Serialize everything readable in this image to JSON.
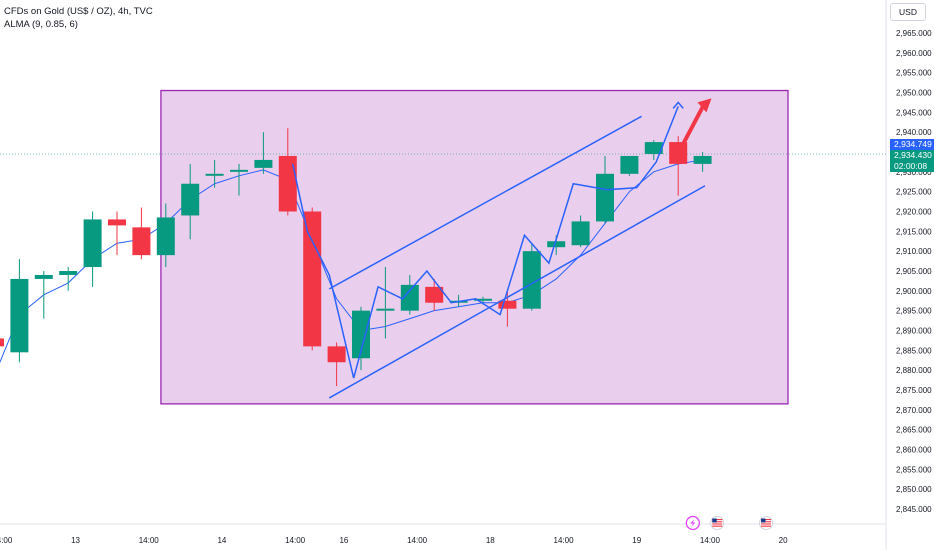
{
  "header": {
    "symbol_line": "CFDs on Gold (US$ / OZ), 4h, TVC",
    "indicator_line": "ALMA (9, 0.85, 6)",
    "currency": "USD"
  },
  "price_tags": {
    "last_price": "2,934.749",
    "mark_price": "2,934.430",
    "countdown": "02:00:08"
  },
  "chart_data": {
    "type": "candlestick",
    "y_axis": {
      "ylim": [
        2842,
        2969
      ],
      "ticks": [
        "2,965.000",
        "2,960.000",
        "2,955.000",
        "2,950.000",
        "2,945.000",
        "2,940.000",
        "2,935.000",
        "2,930.000",
        "2,925.000",
        "2,920.000",
        "2,915.000",
        "2,910.000",
        "2,905.000",
        "2,900.000",
        "2,895.000",
        "2,890.000",
        "2,885.000",
        "2,880.000",
        "2,875.000",
        "2,870.000",
        "2,865.000",
        "2,860.000",
        "2,855.000",
        "2,850.000",
        "2,845.000"
      ],
      "tick_values": [
        2965,
        2960,
        2955,
        2950,
        2945,
        2940,
        2935,
        2930,
        2925,
        2920,
        2915,
        2910,
        2905,
        2900,
        2895,
        2890,
        2885,
        2880,
        2875,
        2870,
        2865,
        2860,
        2855,
        2850,
        2845
      ]
    },
    "x_axis": {
      "labels": [
        {
          "text": "14:00",
          "bar": 0.3
        },
        {
          "text": "13",
          "bar": 3.3
        },
        {
          "text": "14:00",
          "bar": 6.3
        },
        {
          "text": "14",
          "bar": 9.3
        },
        {
          "text": "14:00",
          "bar": 12.3
        },
        {
          "text": "16",
          "bar": 14.3
        },
        {
          "text": "14:00",
          "bar": 17.3
        },
        {
          "text": "18",
          "bar": 20.3
        },
        {
          "text": "14:00",
          "bar": 23.3
        },
        {
          "text": "19",
          "bar": 26.3
        },
        {
          "text": "14:00",
          "bar": 29.3
        },
        {
          "text": "20",
          "bar": 32.3
        }
      ]
    },
    "candles": [
      {
        "o": 2888.0,
        "h": 2889.0,
        "l": 2884.0,
        "c": 2886.0
      },
      {
        "o": 2884.5,
        "h": 2908.0,
        "l": 2882.0,
        "c": 2903.0
      },
      {
        "o": 2903.0,
        "h": 2905.0,
        "l": 2893.0,
        "c": 2904.0
      },
      {
        "o": 2904.0,
        "h": 2906.0,
        "l": 2900.0,
        "c": 2905.0
      },
      {
        "o": 2906.0,
        "h": 2920.0,
        "l": 2901.0,
        "c": 2918.0
      },
      {
        "o": 2918.0,
        "h": 2920.0,
        "l": 2909.0,
        "c": 2916.5
      },
      {
        "o": 2916.0,
        "h": 2921.0,
        "l": 2908.0,
        "c": 2909.0
      },
      {
        "o": 2909.0,
        "h": 2922.0,
        "l": 2906.0,
        "c": 2918.5
      },
      {
        "o": 2919.0,
        "h": 2932.0,
        "l": 2913.0,
        "c": 2927.0
      },
      {
        "o": 2929.0,
        "h": 2933.0,
        "l": 2926.0,
        "c": 2929.5
      },
      {
        "o": 2930.0,
        "h": 2932.0,
        "l": 2924.0,
        "c": 2930.5
      },
      {
        "o": 2931.0,
        "h": 2940.0,
        "l": 2929.5,
        "c": 2933.0
      },
      {
        "o": 2934.0,
        "h": 2941.0,
        "l": 2919.0,
        "c": 2920.0
      },
      {
        "o": 2920.0,
        "h": 2921.0,
        "l": 2885.0,
        "c": 2886.0
      },
      {
        "o": 2886.0,
        "h": 2887.0,
        "l": 2876.0,
        "c": 2882.0
      },
      {
        "o": 2883.0,
        "h": 2896.0,
        "l": 2880.0,
        "c": 2895.0
      },
      {
        "o": 2895.0,
        "h": 2906.0,
        "l": 2888.0,
        "c": 2895.5
      },
      {
        "o": 2895.0,
        "h": 2904.0,
        "l": 2894.0,
        "c": 2901.5
      },
      {
        "o": 2901.0,
        "h": 2903.0,
        "l": 2895.0,
        "c": 2897.0
      },
      {
        "o": 2897.0,
        "h": 2899.0,
        "l": 2896.0,
        "c": 2897.5
      },
      {
        "o": 2897.5,
        "h": 2898.5,
        "l": 2896.5,
        "c": 2898.0
      },
      {
        "o": 2897.5,
        "h": 2900.0,
        "l": 2891.0,
        "c": 2895.5
      },
      {
        "o": 2895.5,
        "h": 2912.0,
        "l": 2895.0,
        "c": 2910.0
      },
      {
        "o": 2911.0,
        "h": 2914.0,
        "l": 2909.0,
        "c": 2912.5
      },
      {
        "o": 2911.5,
        "h": 2919.0,
        "l": 2911.0,
        "c": 2917.5
      },
      {
        "o": 2917.5,
        "h": 2934.0,
        "l": 2917.0,
        "c": 2929.5
      },
      {
        "o": 2929.5,
        "h": 2934.0,
        "l": 2929.0,
        "c": 2934.0
      },
      {
        "o": 2934.5,
        "h": 2938.0,
        "l": 2933.0,
        "c": 2937.5
      },
      {
        "o": 2937.5,
        "h": 2939.0,
        "l": 2924.0,
        "c": 2932.0
      },
      {
        "o": 2932.0,
        "h": 2935.0,
        "l": 2930.0,
        "c": 2934.0
      }
    ],
    "alma": [
      2879.0,
      2894.0,
      2899.0,
      2902.0,
      2908.0,
      2912.0,
      2913.0,
      2917.0,
      2923.0,
      2927.0,
      2929.0,
      2930.5,
      2928.0,
      2913.0,
      2898.0,
      2890.0,
      2891.0,
      2893.0,
      2895.0,
      2896.0,
      2897.0,
      2897.0,
      2899.0,
      2903.0,
      2909.0,
      2917.0,
      2925.0,
      2930.0,
      2932.0,
      2933.0
    ],
    "zone": {
      "bar_start": 6.8,
      "bar_end": 32.5,
      "top": 2950.5,
      "bottom": 2871.5
    },
    "channel": {
      "upper": [
        {
          "bar": 13.7,
          "y": 2900.5
        },
        {
          "bar": 26.5,
          "y": 2944.0
        }
      ],
      "lower": [
        {
          "bar": 13.7,
          "y": 2873.0
        },
        {
          "bar": 29.1,
          "y": 2926.5
        }
      ]
    },
    "zigzag": [
      {
        "bar": 12.2,
        "y": 2932.0
      },
      {
        "bar": 12.8,
        "y": 2915.0
      },
      {
        "bar": 13.7,
        "y": 2904.0
      },
      {
        "bar": 14.7,
        "y": 2878.0
      },
      {
        "bar": 15.7,
        "y": 2901.0
      },
      {
        "bar": 16.7,
        "y": 2898.0
      },
      {
        "bar": 17.7,
        "y": 2905.0
      },
      {
        "bar": 18.7,
        "y": 2897.0
      },
      {
        "bar": 19.7,
        "y": 2898.0
      },
      {
        "bar": 20.7,
        "y": 2894.0
      },
      {
        "bar": 21.7,
        "y": 2914.0
      },
      {
        "bar": 22.7,
        "y": 2907.0
      },
      {
        "bar": 23.7,
        "y": 2927.0
      },
      {
        "bar": 25.1,
        "y": 2925.5
      },
      {
        "bar": 26.3,
        "y": 2926.0
      },
      {
        "bar": 27.1,
        "y": 2932.5
      },
      {
        "bar": 28.0,
        "y": 2946.5
      }
    ],
    "blue_arrow": {
      "bar_from": 28.0,
      "bar_to": 28.0,
      "y_from": 2933.0,
      "y_to": 2947.5
    },
    "red_arrow": {
      "bar_from": 28.2,
      "y_from": 2937.0,
      "bar_to": 29.2,
      "y_to": 2948.0
    },
    "current_price_line": 2934.5,
    "colors": {
      "up": "#089981",
      "down": "#f23645",
      "zone_fill": "#e1bee7",
      "zone_stroke": "#9c27b0",
      "line": "#2962ff",
      "arrow": "#f23645",
      "price_tag": "#2962ff"
    }
  },
  "event_icons": [
    {
      "name": "lightning-icon",
      "bar": 28.6
    },
    {
      "name": "us-flag-icon",
      "bar": 29.6
    },
    {
      "name": "us-flag-icon",
      "bar": 31.6
    }
  ]
}
